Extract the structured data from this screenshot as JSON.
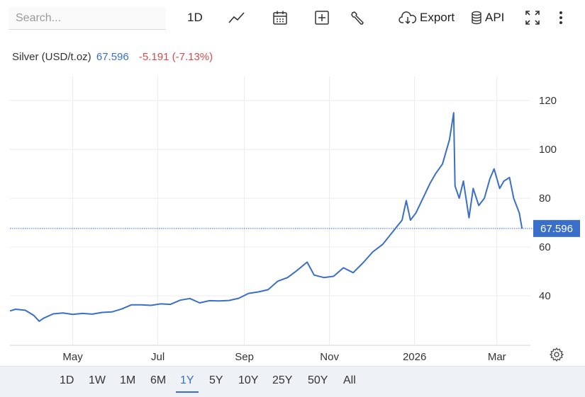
{
  "toolbar": {
    "search_placeholder": "Search...",
    "interval_label": "1D",
    "export_label": "Export",
    "api_label": "API"
  },
  "legend": {
    "name": "Silver (USD/t.oz)",
    "price": "67.596",
    "change": "-5.191 (-7.13%)"
  },
  "last_price_label": "67.596",
  "ranges": [
    "1D",
    "1W",
    "1M",
    "6M",
    "1Y",
    "5Y",
    "10Y",
    "25Y",
    "50Y",
    "All"
  ],
  "active_range": "1Y",
  "colors": {
    "line": "#3a6fc9",
    "change_negative": "#d84b4b",
    "range_bar_bg": "#eef1f6"
  },
  "chart_data": {
    "type": "line",
    "series": [
      {
        "name": "Silver (USD/t.oz)",
        "x": [
          "2025-03-17",
          "2025-03-21",
          "2025-03-28",
          "2025-04-03",
          "2025-04-07",
          "2025-04-10",
          "2025-04-17",
          "2025-04-24",
          "2025-05-01",
          "2025-05-08",
          "2025-05-15",
          "2025-05-22",
          "2025-05-29",
          "2025-06-05",
          "2025-06-12",
          "2025-06-19",
          "2025-06-26",
          "2025-07-03",
          "2025-07-10",
          "2025-07-17",
          "2025-07-24",
          "2025-07-31",
          "2025-08-07",
          "2025-08-14",
          "2025-08-21",
          "2025-08-28",
          "2025-09-04",
          "2025-09-11",
          "2025-09-18",
          "2025-09-25",
          "2025-10-02",
          "2025-10-09",
          "2025-10-16",
          "2025-10-21",
          "2025-10-28",
          "2025-11-04",
          "2025-11-11",
          "2025-11-18",
          "2025-11-25",
          "2025-12-02",
          "2025-12-09",
          "2025-12-16",
          "2025-12-23",
          "2025-12-26",
          "2025-12-29",
          "2026-01-02",
          "2026-01-07",
          "2026-01-12",
          "2026-01-16",
          "2026-01-21",
          "2026-01-26",
          "2026-01-29",
          "2026-01-30",
          "2026-02-02",
          "2026-02-05",
          "2026-02-09",
          "2026-02-12",
          "2026-02-16",
          "2026-02-20",
          "2026-02-24",
          "2026-02-27",
          "2026-03-03",
          "2026-03-06",
          "2026-03-10",
          "2026-03-13",
          "2026-03-17",
          "2026-03-19"
        ],
        "values": [
          33.8,
          34.5,
          34.1,
          32.0,
          29.6,
          30.8,
          32.6,
          33.0,
          32.4,
          32.8,
          32.5,
          33.2,
          33.4,
          34.6,
          36.3,
          36.3,
          36.1,
          36.7,
          36.5,
          38.2,
          38.9,
          37.1,
          38.0,
          37.9,
          38.1,
          39.0,
          41.0,
          41.6,
          42.5,
          46.0,
          47.5,
          50.5,
          53.8,
          48.5,
          47.5,
          48.0,
          51.5,
          49.5,
          53.5,
          58.0,
          61.0,
          66.0,
          71.0,
          79.0,
          71.0,
          74.0,
          80.0,
          86.0,
          90.0,
          94.0,
          104.0,
          115.0,
          85.0,
          80.0,
          87.0,
          72.0,
          84.0,
          77.0,
          80.0,
          88.0,
          92.0,
          84.0,
          87.0,
          88.5,
          80.0,
          74.0,
          67.596
        ]
      }
    ],
    "x_ticks": [
      "May",
      "Jul",
      "Sep",
      "Nov",
      "2026",
      "Mar"
    ],
    "x_tick_dates": [
      "2025-05-01",
      "2025-07-01",
      "2025-09-01",
      "2025-11-01",
      "2026-01-01",
      "2026-03-01"
    ],
    "y_ticks": [
      40,
      60,
      80,
      100,
      120
    ],
    "ylim": [
      20,
      127
    ],
    "xlim": [
      "2025-03-17",
      "2026-03-25"
    ],
    "grid": true,
    "y_axis_side": "right",
    "last_price_line": 67.596
  }
}
